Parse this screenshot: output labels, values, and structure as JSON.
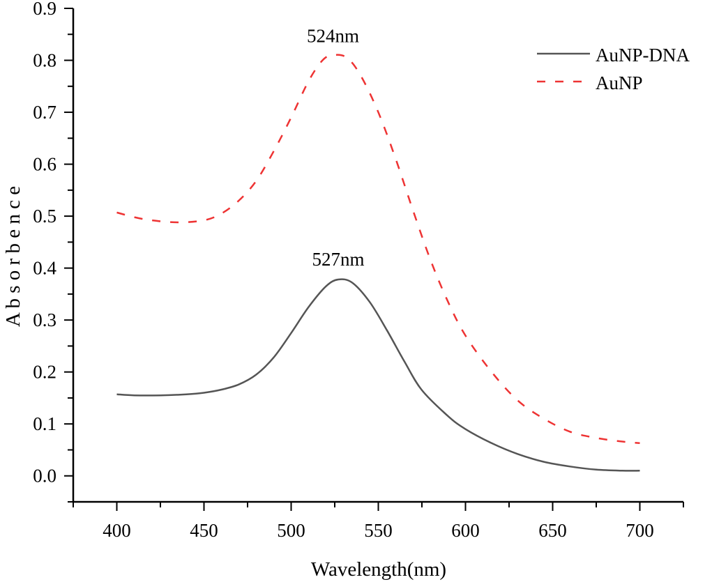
{
  "chart_data": {
    "type": "line",
    "title": "",
    "xlabel": "Wavelength(nm)",
    "ylabel": "A b s o r b e n c e",
    "xlim": [
      375,
      725
    ],
    "ylim": [
      -0.05,
      0.9
    ],
    "xticks": [
      400,
      450,
      500,
      550,
      600,
      650,
      700
    ],
    "xtick_labels": [
      "400",
      "450",
      "500",
      "550",
      "600",
      "650",
      "700"
    ],
    "yticks": [
      0.0,
      0.1,
      0.2,
      0.3,
      0.4,
      0.5,
      0.6,
      0.7,
      0.8,
      0.9
    ],
    "ytick_labels": [
      "0.0",
      "0.1",
      "0.2",
      "0.3",
      "0.4",
      "0.5",
      "0.6",
      "0.7",
      "0.8",
      "0.9"
    ],
    "grid": false,
    "legend_position": "top-right",
    "series": [
      {
        "name": "AuNP-DNA",
        "color": "#555555",
        "style": "solid",
        "x": [
          400,
          410,
          425,
          440,
          450,
          460,
          470,
          480,
          490,
          500,
          510,
          520,
          527,
          535,
          545,
          555,
          565,
          575,
          590,
          600,
          615,
          630,
          645,
          660,
          675,
          690,
          700
        ],
        "y": [
          0.157,
          0.155,
          0.155,
          0.157,
          0.16,
          0.166,
          0.176,
          0.195,
          0.228,
          0.275,
          0.325,
          0.365,
          0.378,
          0.372,
          0.335,
          0.28,
          0.22,
          0.165,
          0.115,
          0.09,
          0.063,
          0.042,
          0.027,
          0.018,
          0.012,
          0.01,
          0.01
        ]
      },
      {
        "name": "AuNP",
        "color": "#ee3333",
        "style": "dashed",
        "x": [
          400,
          410,
          420,
          435,
          450,
          460,
          470,
          480,
          490,
          500,
          510,
          518,
          524,
          532,
          540,
          550,
          560,
          570,
          580,
          590,
          600,
          615,
          630,
          645,
          660,
          675,
          690,
          700
        ],
        "y": [
          0.507,
          0.498,
          0.492,
          0.488,
          0.492,
          0.505,
          0.53,
          0.568,
          0.625,
          0.69,
          0.76,
          0.8,
          0.81,
          0.805,
          0.77,
          0.7,
          0.61,
          0.51,
          0.415,
          0.335,
          0.27,
          0.2,
          0.145,
          0.11,
          0.085,
          0.073,
          0.066,
          0.063
        ]
      }
    ],
    "annotations": [
      {
        "text": "524nm",
        "x": 524,
        "y": 0.835
      },
      {
        "text": "527nm",
        "x": 527,
        "y": 0.405
      }
    ]
  }
}
